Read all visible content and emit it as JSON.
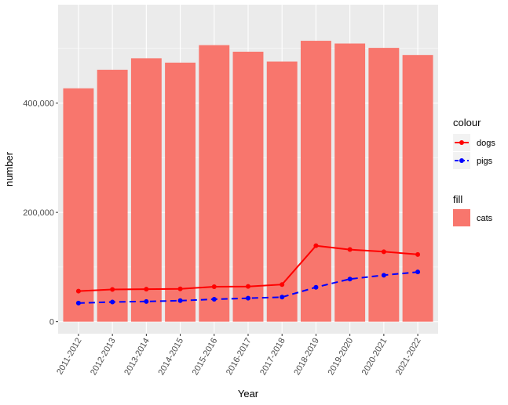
{
  "chart_data": {
    "type": "bar",
    "xlabel": "Year",
    "ylabel": "number",
    "categories": [
      "2011-2012",
      "2012-2013",
      "2013-2014",
      "2014-2015",
      "2015-2016",
      "2016-2017",
      "2017-2018",
      "2018-2019",
      "2019-2020",
      "2020-2021",
      "2021-2022"
    ],
    "ylim": [
      -22000,
      580000
    ],
    "yticks": [
      0,
      200000,
      400000
    ],
    "ytick_labels": [
      "0",
      "200,000",
      "400,000"
    ],
    "bars": {
      "name": "cats",
      "color": "#f8766d",
      "values": [
        427000,
        461000,
        482000,
        474000,
        506000,
        494000,
        476000,
        514000,
        509000,
        501000,
        488000
      ]
    },
    "lines": [
      {
        "name": "dogs",
        "color": "#ff0000",
        "dashed": false,
        "values": [
          56000,
          59000,
          59500,
          60000,
          64000,
          64500,
          68000,
          139000,
          132000,
          128000,
          123000
        ]
      },
      {
        "name": "pigs",
        "color": "#0000ff",
        "dashed": true,
        "values": [
          34000,
          36000,
          37000,
          38500,
          41000,
          43000,
          45000,
          63000,
          78000,
          85000,
          91000
        ]
      }
    ],
    "legend": {
      "placement": "right",
      "colour_title": "colour",
      "fill_title": "fill"
    },
    "grid": true
  }
}
